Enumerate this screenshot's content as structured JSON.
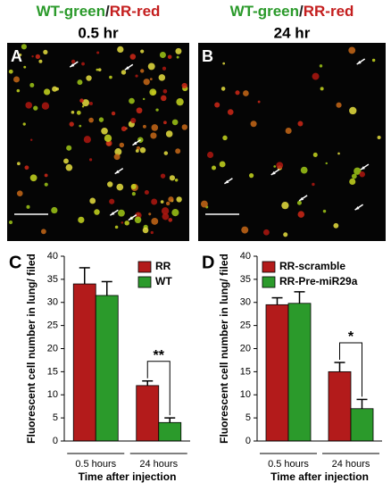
{
  "panels": [
    {
      "label": "A",
      "title_parts": [
        "WT-green",
        "/",
        "RR-red"
      ],
      "time": "0.5 hr"
    },
    {
      "label": "B",
      "title_parts": [
        "WT-green",
        "/",
        "RR-red"
      ],
      "time": "24 hr"
    }
  ],
  "chart_data": [
    {
      "type": "bar",
      "label": "C",
      "categories": [
        "0.5 hours",
        "24 hours"
      ],
      "x_label": "Time after injection",
      "y_label": "Fluorescent cell number in lung/ filed",
      "series": [
        {
          "name": "RR",
          "color": "#b31b1b",
          "values": [
            34,
            12
          ],
          "errors": [
            3.5,
            1
          ]
        },
        {
          "name": "WT",
          "color": "#2b9a2b",
          "values": [
            31.5,
            4
          ],
          "errors": [
            3,
            1
          ]
        }
      ],
      "ylim": [
        0,
        40
      ],
      "yticks": [
        0,
        5,
        10,
        15,
        20,
        25,
        30,
        35,
        40
      ],
      "legend": "upper right",
      "annotation": "**"
    },
    {
      "type": "bar",
      "label": "D",
      "categories": [
        "0.5 hours",
        "24 hours"
      ],
      "x_label": "Time after injection",
      "y_label": "Fluorescent cell number in lung/ filed",
      "series": [
        {
          "name": "RR-scramble",
          "color": "#b31b1b",
          "values": [
            29.5,
            15
          ],
          "errors": [
            1.5,
            2
          ]
        },
        {
          "name": "RR-Pre-miR29a",
          "color": "#2b9a2b",
          "values": [
            29.8,
            7
          ],
          "errors": [
            2.5,
            2
          ]
        }
      ],
      "ylim": [
        0,
        40
      ],
      "yticks": [
        0,
        5,
        10,
        15,
        20,
        25,
        30,
        35,
        40
      ],
      "legend": "upper left",
      "annotation": "*"
    }
  ]
}
